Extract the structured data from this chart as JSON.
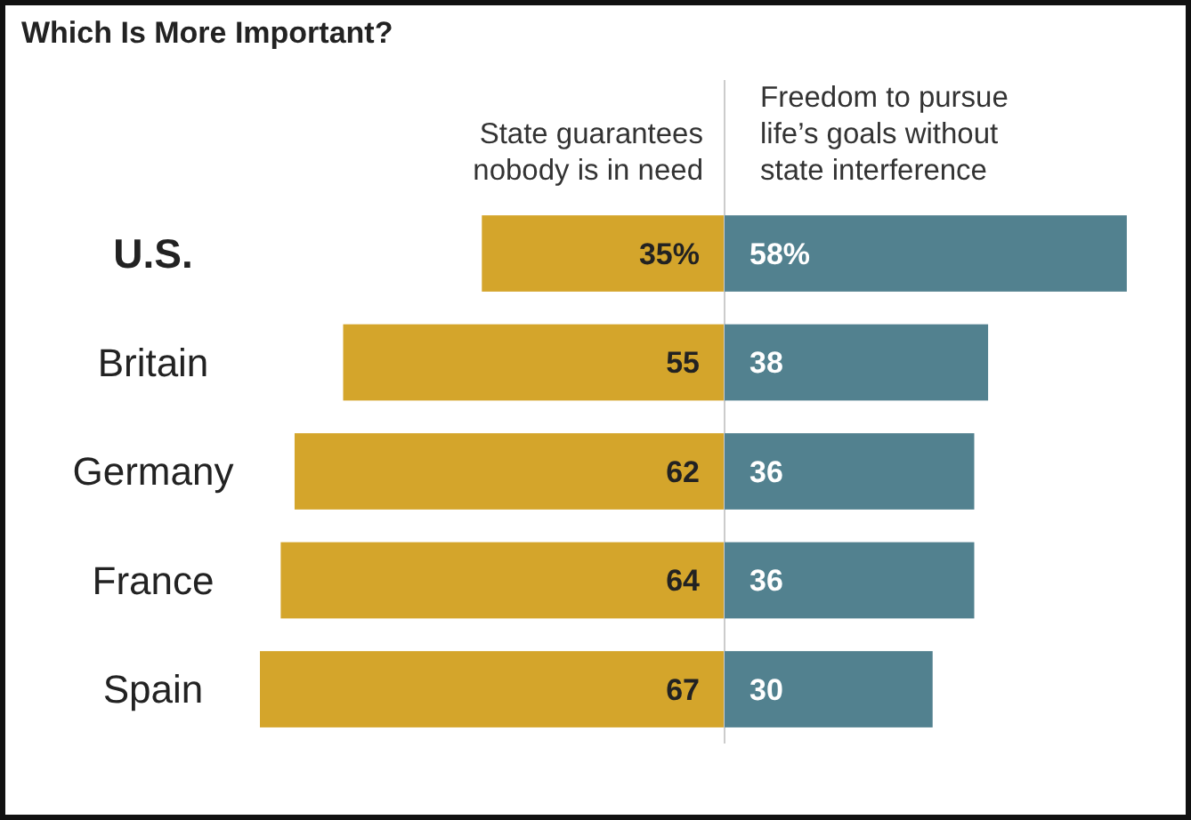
{
  "chart_data": [
    {
      "type": "bar",
      "orientation": "horizontal",
      "title": "Which Is More Important?",
      "categories": [
        "U.S.",
        "Britain",
        "Germany",
        "France",
        "Spain"
      ],
      "tick_labels": "y",
      "series": [
        {
          "name": "State guarantees nobody is in need",
          "color": "#d4a52b",
          "values": [
            35,
            55,
            62,
            64,
            67
          ],
          "value_labels": [
            "35%",
            "55",
            "62",
            "64",
            "67"
          ]
        }
      ]
    },
    {
      "type": "bar",
      "orientation": "horizontal",
      "categories": [
        null,
        null,
        null,
        null,
        null
      ],
      "tick_labels": false,
      "series": [
        {
          "name": "Freedom to pursue life’s goals without state interference",
          "color": "#52818f",
          "values": [
            58,
            38,
            36,
            36,
            30
          ],
          "value_labels": [
            "58%",
            "38",
            "36",
            "36",
            "30"
          ]
        }
      ]
    }
  ]
}
